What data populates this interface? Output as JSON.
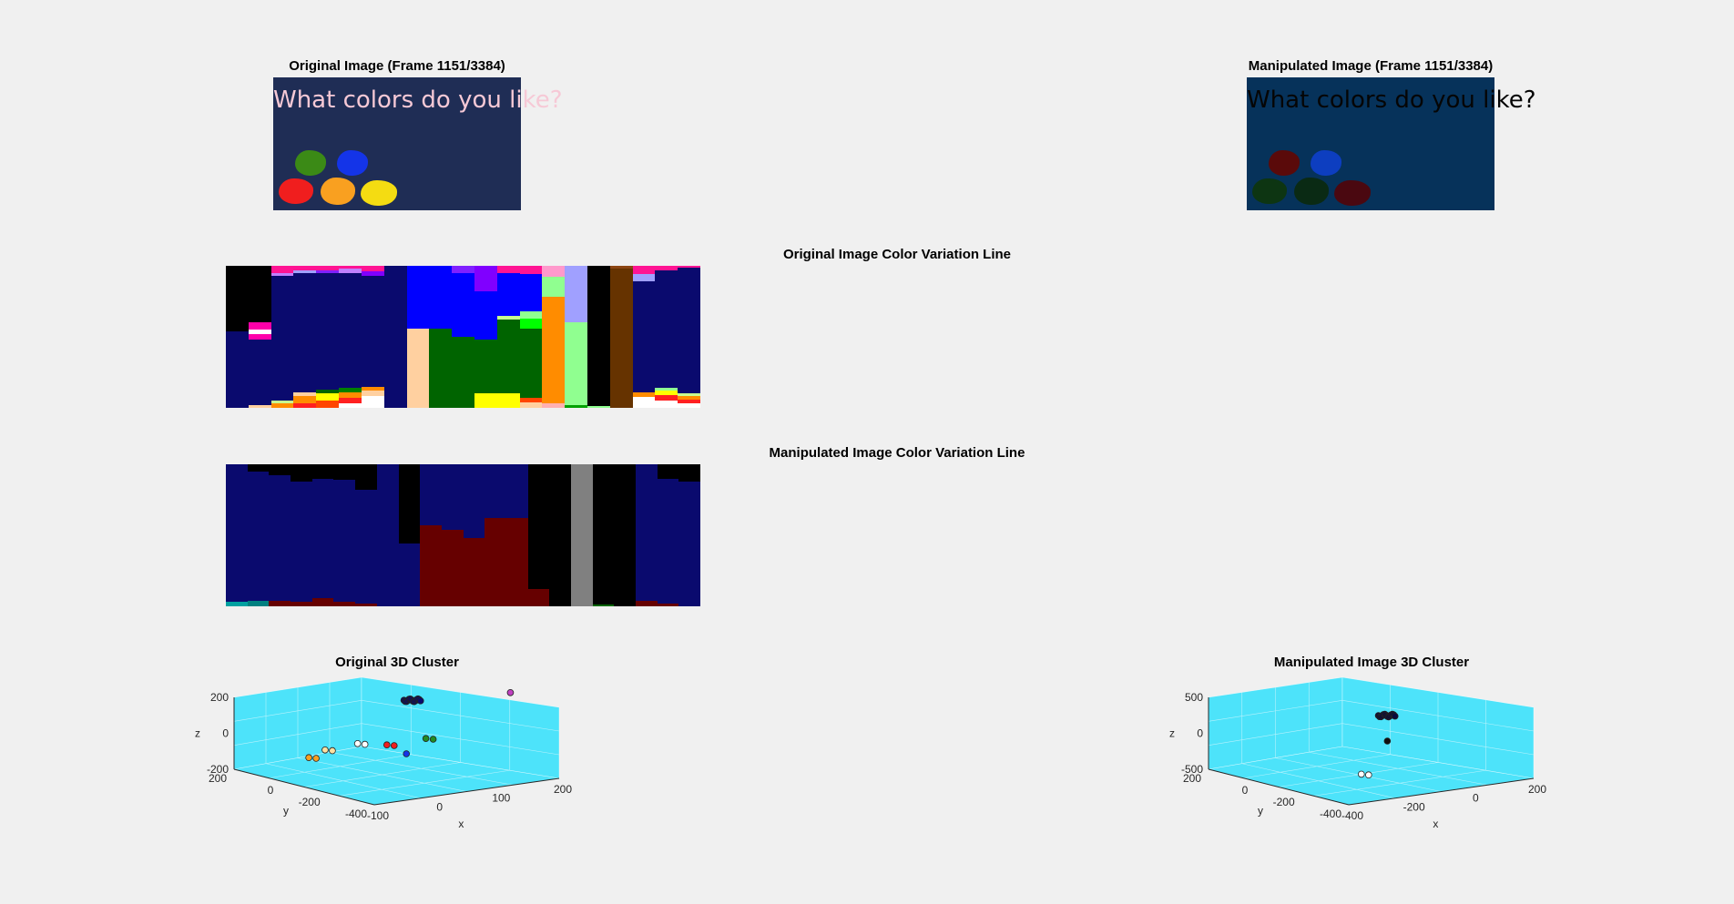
{
  "orig_image": {
    "title": "Original Image (Frame 1151/3384)",
    "caption": "What colors do you like?",
    "bg": "#1f2d55",
    "caption_color": "#f6c9d6",
    "blob_colors": [
      "#3b8a16",
      "#1434e8",
      "#f01e1e",
      "#f9a020",
      "#f4dc12"
    ]
  },
  "manip_image": {
    "title": "Manipulated Image (Frame 1151/3384)",
    "caption": "What colors do you like?",
    "bg": "#06325a",
    "caption_color": "#050505",
    "blob_colors": [
      "#5a0a0a",
      "#0d3ec0",
      "#0d3512",
      "#0a2a14",
      "#4a0810"
    ]
  },
  "orig_strip": {
    "title": "Original Image Color Variation Line",
    "columns": [
      [
        [
          "#000000",
          46
        ],
        [
          "#0a0a6e",
          54
        ]
      ],
      [
        [
          "#000000",
          40
        ],
        [
          "#ff00aa",
          5
        ],
        [
          "#ffffff",
          3
        ],
        [
          "#ff00aa",
          4
        ],
        [
          "#0a0a6e",
          46
        ],
        [
          "#ffd0a0",
          2
        ]
      ],
      [
        [
          "#ff1493",
          5
        ],
        [
          "#c080ff",
          2
        ],
        [
          "#0a0a6e",
          88
        ],
        [
          "#c8ff90",
          2
        ],
        [
          "#ff8c00",
          3
        ]
      ],
      [
        [
          "#ff1493",
          3
        ],
        [
          "#a0a0ff",
          2
        ],
        [
          "#0a0a6e",
          84
        ],
        [
          "#ffd0a0",
          3
        ],
        [
          "#ff8c00",
          5
        ],
        [
          "#ff2020",
          3
        ]
      ],
      [
        [
          "#ff1493",
          3
        ],
        [
          "#8020ff",
          2
        ],
        [
          "#0a0a6e",
          82
        ],
        [
          "#006400",
          3
        ],
        [
          "#ffff00",
          5
        ],
        [
          "#ff4500",
          5
        ]
      ],
      [
        [
          "#ff1493",
          2
        ],
        [
          "#c080ff",
          3
        ],
        [
          "#0a0a6e",
          81
        ],
        [
          "#008000",
          3
        ],
        [
          "#ff8c00",
          4
        ],
        [
          "#ff2020",
          4
        ],
        [
          "#ffffff",
          3
        ]
      ],
      [
        [
          "#ff1493",
          4
        ],
        [
          "#8000ff",
          3
        ],
        [
          "#0a0a6e",
          78
        ],
        [
          "#ff8c00",
          3
        ],
        [
          "#ffd0a0",
          4
        ],
        [
          "#ffffff",
          8
        ]
      ],
      [
        [
          "#0a0a6e",
          100
        ]
      ],
      [
        [
          "#0000ff",
          44
        ],
        [
          "#ffd0a0",
          56
        ]
      ],
      [
        [
          "#0000ff",
          44
        ],
        [
          "#006400",
          56
        ]
      ],
      [
        [
          "#8020ff",
          5
        ],
        [
          "#0000ff",
          45
        ],
        [
          "#006400",
          50
        ]
      ],
      [
        [
          "#8000ff",
          18
        ],
        [
          "#0000ff",
          34
        ],
        [
          "#006400",
          38
        ],
        [
          "#ffff00",
          10
        ]
      ],
      [
        [
          "#ff1493",
          5
        ],
        [
          "#0000ff",
          30
        ],
        [
          "#c8ff90",
          3
        ],
        [
          "#006400",
          52
        ],
        [
          "#ffff00",
          10
        ]
      ],
      [
        [
          "#ff1493",
          6
        ],
        [
          "#0000ff",
          26
        ],
        [
          "#90ff90",
          5
        ],
        [
          "#00ff00",
          7
        ],
        [
          "#006400",
          49
        ],
        [
          "#ff4500",
          3
        ],
        [
          "#ffd0a0",
          4
        ]
      ],
      [
        [
          "#ff99cc",
          8
        ],
        [
          "#90ff90",
          14
        ],
        [
          "#ff8c00",
          75
        ],
        [
          "#ffb0b0",
          3
        ]
      ],
      [
        [
          "#a0a0ff",
          40
        ],
        [
          "#90ff90",
          58
        ],
        [
          "#00a000",
          2
        ]
      ],
      [
        [
          "#000000",
          99
        ],
        [
          "#90ff90",
          1
        ]
      ],
      [
        [
          "#8b4513",
          2
        ],
        [
          "#663300",
          98
        ]
      ],
      [
        [
          "#ff1493",
          6
        ],
        [
          "#a0a0ff",
          5
        ],
        [
          "#0a0a6e",
          78
        ],
        [
          "#ff8c00",
          3
        ],
        [
          "#ffffff",
          8
        ]
      ],
      [
        [
          "#ff1493",
          3
        ],
        [
          "#0a0a6e",
          83
        ],
        [
          "#90ff90",
          2
        ],
        [
          "#ffff00",
          3
        ],
        [
          "#ff2020",
          4
        ],
        [
          "#ffffff",
          5
        ]
      ],
      [
        [
          "#ff1493",
          1
        ],
        [
          "#0a0a6e",
          89
        ],
        [
          "#c8ff90",
          2
        ],
        [
          "#ff8c00",
          2
        ],
        [
          "#ff2020",
          3
        ],
        [
          "#ffffff",
          3
        ]
      ]
    ]
  },
  "manip_strip": {
    "title": "Manipulated Image Color Variation Line",
    "columns": [
      [
        [
          "#0a0a6e",
          97
        ],
        [
          "#00a0a0",
          3
        ]
      ],
      [
        [
          "#000000",
          5
        ],
        [
          "#0a0a6e",
          91
        ],
        [
          "#008080",
          4
        ]
      ],
      [
        [
          "#000000",
          8
        ],
        [
          "#0a0a6e",
          88
        ],
        [
          "#660000",
          4
        ]
      ],
      [
        [
          "#000000",
          12
        ],
        [
          "#0a0a6e",
          85
        ],
        [
          "#660000",
          3
        ]
      ],
      [
        [
          "#000000",
          10
        ],
        [
          "#0a0a6e",
          84
        ],
        [
          "#660000",
          6
        ]
      ],
      [
        [
          "#000000",
          11
        ],
        [
          "#0a0a6e",
          86
        ],
        [
          "#660000",
          3
        ]
      ],
      [
        [
          "#000000",
          18
        ],
        [
          "#0a0a6e",
          80
        ],
        [
          "#660000",
          2
        ]
      ],
      [
        [
          "#0a0a6e",
          100
        ]
      ],
      [
        [
          "#000000",
          56
        ],
        [
          "#0a0a6e",
          44
        ]
      ],
      [
        [
          "#0a0a6e",
          43
        ],
        [
          "#660000",
          57
        ]
      ],
      [
        [
          "#0a0a6e",
          46
        ],
        [
          "#660000",
          54
        ]
      ],
      [
        [
          "#0a0a6e",
          52
        ],
        [
          "#660000",
          48
        ]
      ],
      [
        [
          "#0a0a6e",
          38
        ],
        [
          "#660000",
          62
        ]
      ],
      [
        [
          "#0a0a6e",
          38
        ],
        [
          "#660000",
          62
        ]
      ],
      [
        [
          "#000000",
          88
        ],
        [
          "#660000",
          12
        ]
      ],
      [
        [
          "#000000",
          100
        ]
      ],
      [
        [
          "#808080",
          100
        ]
      ],
      [
        [
          "#000000",
          99
        ],
        [
          "#006400",
          1
        ]
      ],
      [
        [
          "#000000",
          100
        ]
      ],
      [
        [
          "#0a0a6e",
          96
        ],
        [
          "#660000",
          4
        ]
      ],
      [
        [
          "#000000",
          10
        ],
        [
          "#0a0a6e",
          88
        ],
        [
          "#660000",
          2
        ]
      ],
      [
        [
          "#000000",
          12
        ],
        [
          "#0a0a6e",
          88
        ]
      ]
    ]
  },
  "orig_cluster": {
    "title": "Original 3D Cluster",
    "axis_bg": "#4de3fa",
    "z_ticks": [
      "200",
      "0",
      "-200"
    ],
    "y_ticks": [
      "200",
      "0",
      "-200",
      "-400"
    ],
    "x_ticks": [
      "-100",
      "0",
      "100",
      "200"
    ],
    "xlabel": "x",
    "ylabel": "y",
    "zlabel": "z",
    "points": [
      {
        "color": "#0a0a6e",
        "u": 0.55,
        "v": 0.18,
        "n": 14
      },
      {
        "color": "#f9a020",
        "u": 0.23,
        "v": 0.63,
        "n": 2
      },
      {
        "color": "#ffe0a0",
        "u": 0.28,
        "v": 0.57,
        "n": 2
      },
      {
        "color": "#ffffff",
        "u": 0.38,
        "v": 0.52,
        "n": 2
      },
      {
        "color": "#f01e1e",
        "u": 0.47,
        "v": 0.53,
        "n": 2
      },
      {
        "color": "#228b22",
        "u": 0.59,
        "v": 0.48,
        "n": 2
      },
      {
        "color": "#1434e8",
        "u": 0.53,
        "v": 0.6,
        "n": 1
      },
      {
        "color": "#c040c0",
        "u": 0.85,
        "v": 0.12,
        "n": 1
      }
    ]
  },
  "manip_cluster": {
    "title": "Manipulated Image 3D Cluster",
    "axis_bg": "#4de3fa",
    "z_ticks": [
      "500",
      "0",
      "-500"
    ],
    "y_ticks": [
      "200",
      "0",
      "-200",
      "-400"
    ],
    "x_ticks": [
      "-400",
      "-200",
      "0",
      "200"
    ],
    "xlabel": "x",
    "ylabel": "y",
    "zlabel": "z",
    "points": [
      {
        "color": "#0a0a3e",
        "u": 0.55,
        "v": 0.3,
        "n": 14
      },
      {
        "color": "#101010",
        "u": 0.55,
        "v": 0.5,
        "n": 1
      },
      {
        "color": "#ffffff",
        "u": 0.47,
        "v": 0.76,
        "n": 2
      }
    ]
  }
}
